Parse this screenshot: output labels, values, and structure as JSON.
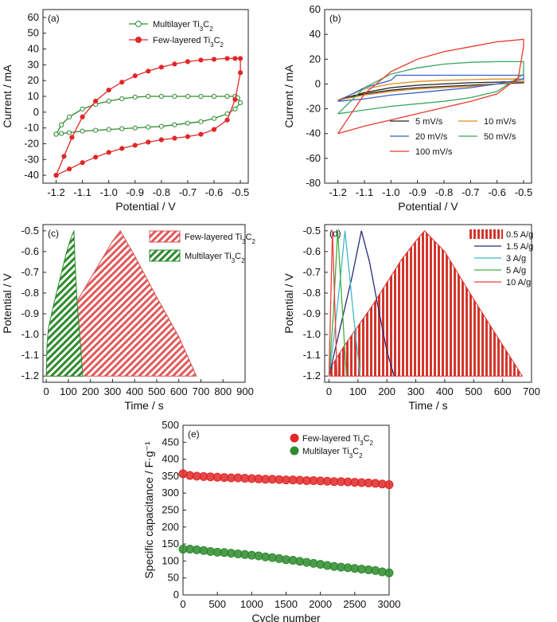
{
  "chart_data": [
    {
      "panel": "(a)",
      "type": "line",
      "xlabel": "Potential / V",
      "ylabel": "Current / mA",
      "xlim": [
        -1.25,
        -0.47
      ],
      "ylim": [
        -45,
        65
      ],
      "xticks": [
        -1.2,
        -1.1,
        -1.0,
        -0.9,
        -0.8,
        -0.7,
        -0.6,
        -0.5
      ],
      "xtick_labels": [
        "-1.2",
        "-1.1",
        "-1.0",
        "-0.9",
        "-0.8",
        "-0.7",
        "-0.6",
        "-0.5"
      ],
      "yticks": [
        -40,
        -30,
        -20,
        -10,
        0,
        10,
        20,
        30,
        40,
        50,
        60
      ],
      "legend_position": "top-right",
      "series": [
        {
          "name": "Multilayer Ti3C2",
          "color": "#2e8b2e",
          "marker": "open-circle",
          "x": [
            -1.2,
            -1.18,
            -1.15,
            -1.1,
            -1.05,
            -1.0,
            -0.95,
            -0.9,
            -0.85,
            -0.8,
            -0.75,
            -0.7,
            -0.65,
            -0.6,
            -0.55,
            -0.52,
            -0.51,
            -0.5,
            -0.52,
            -0.55,
            -0.6,
            -0.65,
            -0.7,
            -0.75,
            -0.8,
            -0.85,
            -0.9,
            -0.95,
            -1.0,
            -1.05,
            -1.1,
            -1.15,
            -1.18,
            -1.2
          ],
          "y": [
            -14,
            -8,
            -3,
            2,
            5,
            7,
            8.5,
            9.5,
            10,
            10,
            10,
            10,
            10,
            10,
            10,
            10,
            9,
            6,
            2,
            -1,
            -4,
            -6,
            -7,
            -8,
            -9,
            -9.5,
            -10,
            -10.5,
            -11,
            -11.5,
            -12,
            -13,
            -13.5,
            -14
          ]
        },
        {
          "name": "Few-layered Ti3C2",
          "color": "#e02828",
          "marker": "filled-circle",
          "x": [
            -1.2,
            -1.17,
            -1.14,
            -1.1,
            -1.05,
            -1.0,
            -0.95,
            -0.9,
            -0.85,
            -0.8,
            -0.75,
            -0.7,
            -0.65,
            -0.6,
            -0.55,
            -0.52,
            -0.5,
            -0.5,
            -0.52,
            -0.55,
            -0.6,
            -0.65,
            -0.7,
            -0.75,
            -0.8,
            -0.85,
            -0.9,
            -0.95,
            -1.0,
            -1.05,
            -1.1,
            -1.15,
            -1.2
          ],
          "y": [
            -40,
            -28,
            -16,
            -3,
            7,
            14,
            19,
            23,
            26,
            28.5,
            30.5,
            32,
            33,
            33.5,
            34,
            34,
            34,
            25,
            8,
            -5,
            -11,
            -14,
            -15.5,
            -16.5,
            -17.5,
            -19,
            -21,
            -23,
            -25.5,
            -28.5,
            -32,
            -36,
            -40
          ]
        }
      ]
    },
    {
      "panel": "(b)",
      "type": "line",
      "xlabel": "Potential / V",
      "ylabel": "Current / mA",
      "xlim": [
        -1.25,
        -0.47
      ],
      "ylim": [
        -80,
        60
      ],
      "xticks": [
        -1.2,
        -1.1,
        -1.0,
        -0.9,
        -0.8,
        -0.7,
        -0.6,
        -0.5
      ],
      "xtick_labels": [
        "-1.2",
        "-1.1",
        "-1.0",
        "-0.9",
        "-0.8",
        "-0.7",
        "-0.6",
        "-0.5"
      ],
      "yticks": [
        -80,
        -60,
        -40,
        -20,
        0,
        20,
        40,
        60
      ],
      "legend_position": "bottom-right",
      "series": [
        {
          "name": "5 mV/s",
          "color": "#222222",
          "x": [
            -1.2,
            -1.1,
            -1.0,
            -0.9,
            -0.8,
            -0.7,
            -0.6,
            -0.5,
            -0.5,
            -0.6,
            -0.7,
            -0.8,
            -0.9,
            -1.0,
            -1.1,
            -1.2
          ],
          "y": [
            -13,
            -7,
            -3,
            -1,
            0,
            1,
            1.5,
            2,
            1,
            0,
            -1,
            -2,
            -3,
            -5,
            -8,
            -13
          ]
        },
        {
          "name": "10 mV/s",
          "color": "#e08a1e",
          "x": [
            -1.2,
            -1.1,
            -1.0,
            -0.9,
            -0.8,
            -0.7,
            -0.6,
            -0.5,
            -0.5,
            -0.6,
            -0.7,
            -0.8,
            -0.9,
            -1.0,
            -1.1,
            -1.2
          ],
          "y": [
            -13,
            -4,
            0,
            2,
            3,
            3.5,
            4,
            4,
            2,
            0,
            -2,
            -3,
            -4,
            -6,
            -9,
            -13
          ]
        },
        {
          "name": "20 mV/s",
          "color": "#3a5fc8",
          "x": [
            -1.2,
            -1.1,
            -1.0,
            -0.98,
            -0.9,
            -0.8,
            -0.7,
            -0.6,
            -0.5,
            -0.5,
            -0.6,
            -0.7,
            -0.8,
            -0.9,
            -1.0,
            -1.1,
            -1.2
          ],
          "y": [
            -14,
            -3,
            3,
            7,
            7,
            7,
            7,
            7,
            7,
            4,
            0,
            -3,
            -5,
            -7,
            -9,
            -12,
            -14
          ]
        },
        {
          "name": "50 mV/s",
          "color": "#3aa860",
          "x": [
            -1.2,
            -1.1,
            -1.0,
            -0.9,
            -0.8,
            -0.7,
            -0.6,
            -0.5,
            -0.5,
            -0.6,
            -0.7,
            -0.8,
            -0.9,
            -1.0,
            -1.1,
            -1.2
          ],
          "y": [
            -24,
            -3,
            8,
            13,
            16,
            17.5,
            18,
            18,
            8,
            -6,
            -11,
            -14,
            -16,
            -18,
            -21,
            -24
          ]
        },
        {
          "name": "100 mV/s",
          "color": "#e83a2a",
          "x": [
            -1.2,
            -1.1,
            -1.0,
            -0.9,
            -0.8,
            -0.7,
            -0.6,
            -0.5,
            -0.5,
            -0.52,
            -0.6,
            -0.7,
            -0.8,
            -0.9,
            -1.0,
            -1.1,
            -1.2
          ],
          "y": [
            -40,
            -8,
            10,
            20,
            26,
            30,
            34,
            36,
            30,
            5,
            -8,
            -14,
            -19,
            -24,
            -29,
            -34,
            -40
          ]
        }
      ]
    },
    {
      "panel": "(c)",
      "type": "area",
      "xlabel": "Time / s",
      "ylabel": "Potential / V",
      "xlim": [
        -15,
        900
      ],
      "ylim": [
        -1.23,
        -0.47
      ],
      "xticks": [
        0,
        100,
        200,
        300,
        400,
        500,
        600,
        700,
        800,
        900
      ],
      "xtick_labels": [
        "0",
        "100",
        "200",
        "300",
        "400",
        "500",
        "600",
        "700",
        "800",
        "900"
      ],
      "yticks": [
        -1.2,
        -1.1,
        -1.0,
        -0.9,
        -0.8,
        -0.7,
        -0.6,
        -0.5
      ],
      "ytick_labels": [
        "-1.2",
        "-1.1",
        "-1.0",
        "-0.9",
        "-0.8",
        "-0.7",
        "-0.6",
        "-0.5"
      ],
      "legend_position": "top-right",
      "series": [
        {
          "name": "Few-layered Ti3C2",
          "color": "#e05050",
          "fill": "diagonal-hatch",
          "x": [
            0,
            5,
            20,
            50,
            100,
            150,
            200,
            250,
            300,
            335,
            335,
            400,
            500,
            600,
            680
          ],
          "y": [
            -1.2,
            -1.08,
            -1.02,
            -0.98,
            -0.9,
            -0.82,
            -0.73,
            -0.64,
            -0.55,
            -0.5,
            -0.5,
            -0.62,
            -0.82,
            -1.01,
            -1.2
          ]
        },
        {
          "name": "Multilayer Ti3C2",
          "color": "#2e8b2e",
          "fill": "diagonal-hatch",
          "x": [
            0,
            3,
            10,
            30,
            60,
            90,
            110,
            125,
            125,
            130,
            140,
            155,
            165
          ],
          "y": [
            -1.2,
            -1.05,
            -0.97,
            -0.87,
            -0.74,
            -0.61,
            -0.54,
            -0.5,
            -0.5,
            -0.65,
            -0.85,
            -1.05,
            -1.2
          ]
        }
      ]
    },
    {
      "panel": "(d)",
      "type": "line",
      "xlabel": "Time / s",
      "ylabel": "Potential / V",
      "xlim": [
        -15,
        700
      ],
      "ylim": [
        -1.23,
        -0.47
      ],
      "xticks": [
        0,
        100,
        200,
        300,
        400,
        500,
        600,
        700
      ],
      "xtick_labels": [
        "0",
        "100",
        "200",
        "300",
        "400",
        "500",
        "600",
        "700"
      ],
      "yticks": [
        -1.2,
        -1.1,
        -1.0,
        -0.9,
        -0.8,
        -0.7,
        -0.6,
        -0.5
      ],
      "ytick_labels": [
        "-1.2",
        "-1.1",
        "-1.0",
        "-0.9",
        "-0.8",
        "-0.7",
        "-0.6",
        "-0.5"
      ],
      "legend_position": "top-right",
      "series": [
        {
          "name": "0.5 A/g",
          "color": "#e03030",
          "fill": "vertical-stripes",
          "x": [
            0,
            10,
            50,
            100,
            150,
            200,
            250,
            300,
            330,
            400,
            500,
            600,
            668
          ],
          "y": [
            -1.2,
            -1.15,
            -1.06,
            -0.96,
            -0.86,
            -0.75,
            -0.64,
            -0.55,
            -0.5,
            -0.6,
            -0.83,
            -1.05,
            -1.2
          ]
        },
        {
          "name": "1.5 A/g",
          "color": "#2a2a7a",
          "x": [
            0,
            20,
            50,
            80,
            112,
            140,
            170,
            200,
            225
          ],
          "y": [
            -1.2,
            -1.08,
            -0.9,
            -0.72,
            -0.5,
            -0.65,
            -0.87,
            -1.08,
            -1.2
          ]
        },
        {
          "name": "3 A/g",
          "color": "#40b8c8",
          "x": [
            0,
            20,
            40,
            55,
            70,
            90,
            108
          ],
          "y": [
            -1.2,
            -0.98,
            -0.72,
            -0.5,
            -0.7,
            -0.98,
            -1.2
          ]
        },
        {
          "name": "5 A/g",
          "color": "#40b040",
          "x": [
            0,
            15,
            30,
            45,
            60
          ],
          "y": [
            -1.2,
            -0.9,
            -0.5,
            -0.85,
            -1.2
          ]
        },
        {
          "name": "10 A/g",
          "color": "#e8403a",
          "x": [
            0,
            5,
            12,
            20,
            28
          ],
          "y": [
            -1.2,
            -0.9,
            -0.5,
            -0.85,
            -1.2
          ]
        }
      ]
    },
    {
      "panel": "(e)",
      "type": "scatter",
      "xlabel": "Cycle number",
      "ylabel": "Specific capacitance / F·g⁻¹",
      "xlim": [
        0,
        3000
      ],
      "ylim": [
        0,
        500
      ],
      "xticks": [
        0,
        500,
        1000,
        1500,
        2000,
        2500,
        3000
      ],
      "yticks": [
        0,
        50,
        100,
        150,
        200,
        250,
        300,
        350,
        400,
        450,
        500
      ],
      "legend_position": "top-right",
      "series": [
        {
          "name": "Few-layered Ti3C2",
          "color": "#e02828",
          "x": [
            0,
            100,
            200,
            300,
            400,
            500,
            600,
            700,
            800,
            900,
            1000,
            1100,
            1200,
            1300,
            1400,
            1500,
            1600,
            1700,
            1800,
            1900,
            2000,
            2100,
            2200,
            2300,
            2400,
            2500,
            2600,
            2700,
            2800,
            2900,
            3000
          ],
          "y": [
            357,
            352,
            350,
            349,
            348,
            347,
            346,
            345,
            345,
            344,
            343,
            342,
            341,
            341,
            340,
            339,
            339,
            338,
            337,
            337,
            336,
            335,
            334,
            334,
            333,
            332,
            331,
            330,
            329,
            327,
            325
          ]
        },
        {
          "name": "Multilayer Ti3C2",
          "color": "#2e8b2e",
          "x": [
            0,
            100,
            200,
            300,
            400,
            500,
            600,
            700,
            800,
            900,
            1000,
            1100,
            1200,
            1300,
            1400,
            1500,
            1600,
            1700,
            1800,
            1900,
            2000,
            2100,
            2200,
            2300,
            2400,
            2500,
            2600,
            2700,
            2800,
            2900,
            3000
          ],
          "y": [
            135,
            135,
            133,
            131,
            128,
            126,
            125,
            123,
            121,
            119,
            117,
            115,
            112,
            110,
            107,
            104,
            102,
            99,
            96,
            93,
            90,
            87,
            84,
            82,
            80,
            78,
            76,
            74,
            72,
            68,
            65
          ]
        }
      ]
    }
  ]
}
